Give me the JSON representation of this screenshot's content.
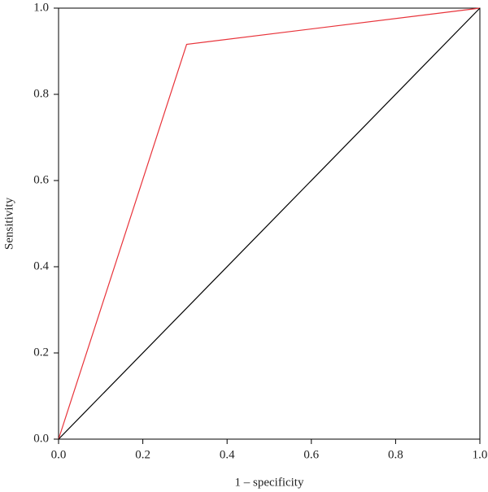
{
  "chart_data": {
    "type": "line",
    "x_label": "1 – specificity",
    "y_label": "Sensitivity",
    "series": [
      {
        "color": "#e8333a",
        "x": [
          0,
          0.304,
          1
        ],
        "values": [
          0,
          0.916,
          1
        ]
      },
      {
        "color": "#000000",
        "x": [
          0,
          1
        ],
        "values": [
          0,
          1
        ]
      }
    ],
    "xlim": [
      0,
      1
    ],
    "ylim": [
      0,
      1
    ],
    "xticks": [
      {
        "value": 0,
        "label": "0.0"
      },
      0.2,
      0.4,
      0.6,
      0.8,
      {
        "value": 1,
        "label": "1.0"
      }
    ],
    "yticks": [
      {
        "value": 0,
        "label": "0.0"
      },
      0.2,
      0.4,
      0.6,
      0.8,
      {
        "value": 1,
        "label": "1.0"
      }
    ],
    "grid": false
  }
}
